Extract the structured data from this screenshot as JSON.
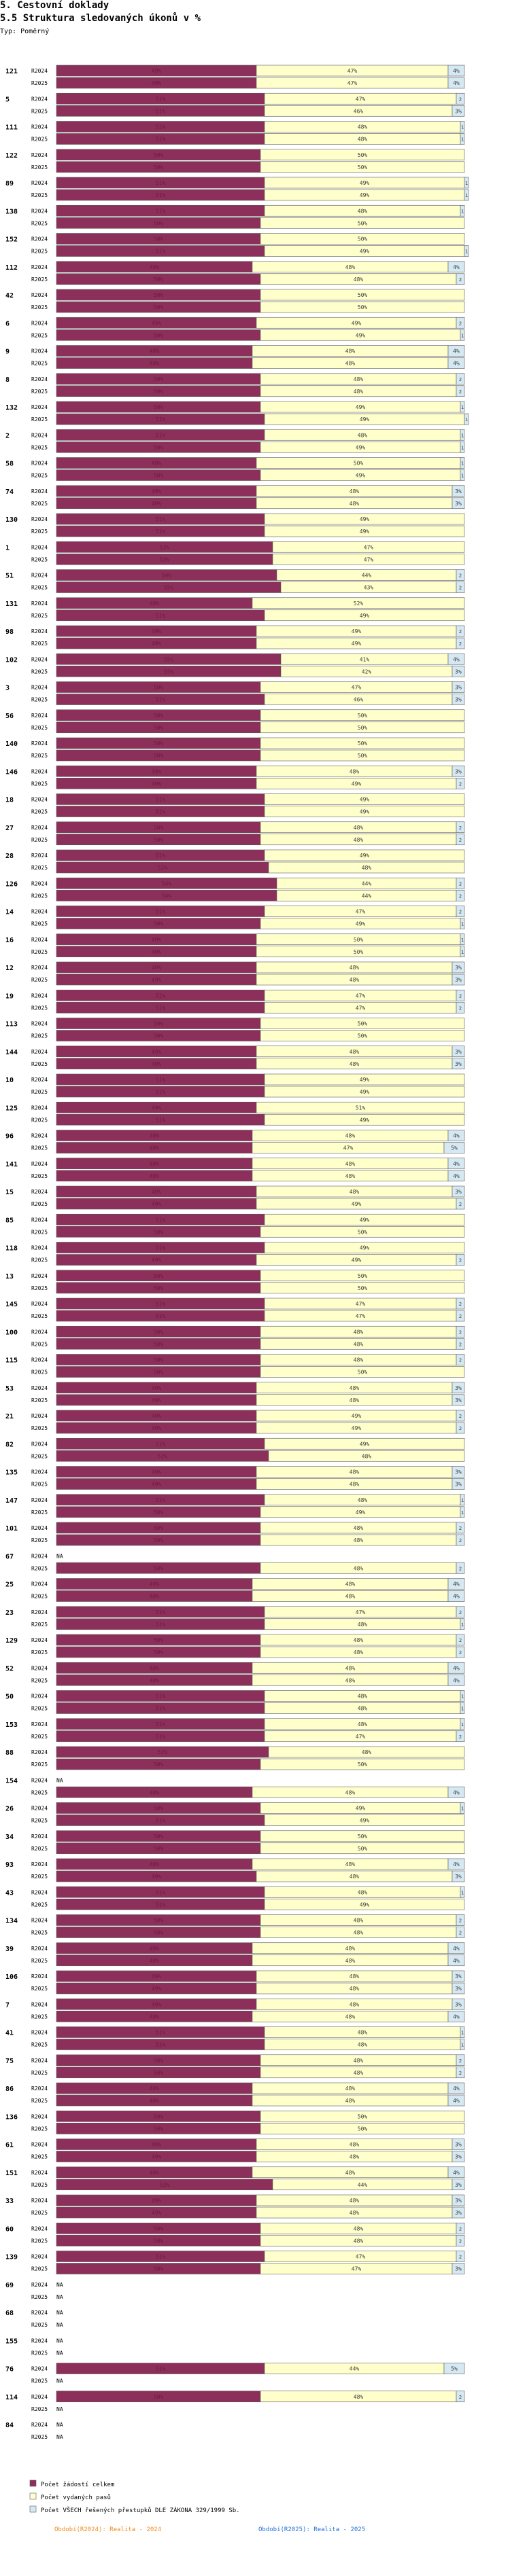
{
  "header": {
    "title": "5. Cestovní doklady",
    "subtitle": "5.5 Struktura sledovaných úkonů v %",
    "type_label": "Typ: Poměrný"
  },
  "colors": {
    "series1": "#8c2f5a",
    "series2": "#ffffcc",
    "series3": "#d6e9f2",
    "outline": "#5a5a5a",
    "footer_2024": "#f08c1e",
    "footer_2025": "#1e6fd9"
  },
  "chart_data": {
    "type": "bar",
    "stacked": true,
    "orientation": "horizontal",
    "unit": "%",
    "row_labels": [
      "R2024",
      "R2025"
    ],
    "series": [
      {
        "name": "Počet žádostí celkem"
      },
      {
        "name": "Počet vydaných pasů"
      },
      {
        "name": "Počet VŠECH řešených přestupků DLE ZÁKONA 329/1999 Sb."
      }
    ],
    "legend": [
      "Počet žádostí celkem",
      "Počet vydaných pasů",
      "Počet VŠECH řešených přestupků DLE ZÁKONA 329/1999 Sb."
    ],
    "footer": {
      "left": "Období(R2024): Realita - 2024",
      "right": "Období(R2025): Realita - 2025"
    },
    "groups": [
      {
        "id": "121",
        "r2024": [
          49,
          47,
          4
        ],
        "r2025": [
          49,
          47,
          4
        ]
      },
      {
        "id": "5",
        "r2024": [
          51,
          47,
          2
        ],
        "r2025": [
          51,
          46,
          3
        ]
      },
      {
        "id": "111",
        "r2024": [
          51,
          48,
          1
        ],
        "r2025": [
          51,
          48,
          1
        ]
      },
      {
        "id": "122",
        "r2024": [
          50,
          50,
          0
        ],
        "r2025": [
          50,
          50,
          0
        ]
      },
      {
        "id": "89",
        "r2024": [
          51,
          49,
          1
        ],
        "r2025": [
          51,
          49,
          1
        ]
      },
      {
        "id": "138",
        "r2024": [
          51,
          48,
          1
        ],
        "r2025": [
          50,
          50,
          0
        ]
      },
      {
        "id": "152",
        "r2024": [
          50,
          50,
          0
        ],
        "r2025": [
          51,
          49,
          1
        ]
      },
      {
        "id": "112",
        "r2024": [
          48,
          48,
          4
        ],
        "r2025": [
          50,
          48,
          2
        ]
      },
      {
        "id": "42",
        "r2024": [
          50,
          50,
          0
        ],
        "r2025": [
          50,
          50,
          0
        ]
      },
      {
        "id": "6",
        "r2024": [
          49,
          49,
          2
        ],
        "r2025": [
          50,
          49,
          1
        ]
      },
      {
        "id": "9",
        "r2024": [
          48,
          48,
          4
        ],
        "r2025": [
          48,
          48,
          4
        ]
      },
      {
        "id": "8",
        "r2024": [
          50,
          48,
          2
        ],
        "r2025": [
          50,
          48,
          2
        ]
      },
      {
        "id": "132",
        "r2024": [
          50,
          49,
          1
        ],
        "r2025": [
          51,
          49,
          1
        ]
      },
      {
        "id": "2",
        "r2024": [
          51,
          48,
          1
        ],
        "r2025": [
          50,
          49,
          1
        ]
      },
      {
        "id": "58",
        "r2024": [
          49,
          50,
          1
        ],
        "r2025": [
          50,
          49,
          1
        ]
      },
      {
        "id": "74",
        "r2024": [
          49,
          48,
          3
        ],
        "r2025": [
          49,
          48,
          3
        ]
      },
      {
        "id": "130",
        "r2024": [
          51,
          49,
          0
        ],
        "r2025": [
          51,
          49,
          0
        ]
      },
      {
        "id": "1",
        "r2024": [
          53,
          47,
          0
        ],
        "r2025": [
          53,
          47,
          0
        ]
      },
      {
        "id": "51",
        "r2024": [
          54,
          44,
          2
        ],
        "r2025": [
          55,
          43,
          2
        ]
      },
      {
        "id": "131",
        "r2024": [
          48,
          52,
          0
        ],
        "r2025": [
          51,
          49,
          0
        ]
      },
      {
        "id": "98",
        "r2024": [
          49,
          49,
          2
        ],
        "r2025": [
          49,
          49,
          2
        ]
      },
      {
        "id": "102",
        "r2024": [
          55,
          41,
          4
        ],
        "r2025": [
          55,
          42,
          3
        ]
      },
      {
        "id": "3",
        "r2024": [
          50,
          47,
          3
        ],
        "r2025": [
          51,
          46,
          3
        ]
      },
      {
        "id": "56",
        "r2024": [
          50,
          50,
          0
        ],
        "r2025": [
          50,
          50,
          0
        ]
      },
      {
        "id": "140",
        "r2024": [
          50,
          50,
          0
        ],
        "r2025": [
          50,
          50,
          0
        ]
      },
      {
        "id": "146",
        "r2024": [
          49,
          48,
          3
        ],
        "r2025": [
          49,
          49,
          2
        ]
      },
      {
        "id": "18",
        "r2024": [
          51,
          49,
          0
        ],
        "r2025": [
          51,
          49,
          0
        ]
      },
      {
        "id": "27",
        "r2024": [
          50,
          48,
          2
        ],
        "r2025": [
          50,
          48,
          2
        ]
      },
      {
        "id": "28",
        "r2024": [
          51,
          49,
          0
        ],
        "r2025": [
          52,
          48,
          0
        ]
      },
      {
        "id": "126",
        "r2024": [
          54,
          44,
          2
        ],
        "r2025": [
          54,
          44,
          2
        ]
      },
      {
        "id": "14",
        "r2024": [
          51,
          47,
          2
        ],
        "r2025": [
          50,
          49,
          1
        ]
      },
      {
        "id": "16",
        "r2024": [
          49,
          50,
          1
        ],
        "r2025": [
          49,
          50,
          1
        ]
      },
      {
        "id": "12",
        "r2024": [
          49,
          48,
          3
        ],
        "r2025": [
          49,
          48,
          3
        ]
      },
      {
        "id": "19",
        "r2024": [
          51,
          47,
          2
        ],
        "r2025": [
          51,
          47,
          2
        ]
      },
      {
        "id": "113",
        "r2024": [
          50,
          50,
          0
        ],
        "r2025": [
          50,
          50,
          0
        ]
      },
      {
        "id": "144",
        "r2024": [
          49,
          48,
          3
        ],
        "r2025": [
          49,
          48,
          3
        ]
      },
      {
        "id": "10",
        "r2024": [
          51,
          49,
          0
        ],
        "r2025": [
          51,
          49,
          0
        ]
      },
      {
        "id": "125",
        "r2024": [
          49,
          51,
          0
        ],
        "r2025": [
          51,
          49,
          0
        ]
      },
      {
        "id": "96",
        "r2024": [
          48,
          48,
          4
        ],
        "r2025": [
          48,
          47,
          5
        ]
      },
      {
        "id": "141",
        "r2024": [
          48,
          48,
          4
        ],
        "r2025": [
          48,
          48,
          4
        ]
      },
      {
        "id": "15",
        "r2024": [
          49,
          48,
          3
        ],
        "r2025": [
          49,
          49,
          2
        ]
      },
      {
        "id": "85",
        "r2024": [
          51,
          49,
          0
        ],
        "r2025": [
          50,
          50,
          0
        ]
      },
      {
        "id": "118",
        "r2024": [
          51,
          49,
          0
        ],
        "r2025": [
          49,
          49,
          2
        ]
      },
      {
        "id": "13",
        "r2024": [
          50,
          50,
          0
        ],
        "r2025": [
          50,
          50,
          0
        ]
      },
      {
        "id": "145",
        "r2024": [
          51,
          47,
          2
        ],
        "r2025": [
          51,
          47,
          2
        ]
      },
      {
        "id": "100",
        "r2024": [
          50,
          48,
          2
        ],
        "r2025": [
          50,
          48,
          2
        ]
      },
      {
        "id": "115",
        "r2024": [
          50,
          48,
          2
        ],
        "r2025": [
          50,
          50,
          0
        ]
      },
      {
        "id": "53",
        "r2024": [
          49,
          48,
          3
        ],
        "r2025": [
          49,
          48,
          3
        ]
      },
      {
        "id": "21",
        "r2024": [
          49,
          49,
          2
        ],
        "r2025": [
          49,
          49,
          2
        ]
      },
      {
        "id": "82",
        "r2024": [
          51,
          49,
          0
        ],
        "r2025": [
          52,
          48,
          0
        ]
      },
      {
        "id": "135",
        "r2024": [
          49,
          48,
          3
        ],
        "r2025": [
          49,
          48,
          3
        ]
      },
      {
        "id": "147",
        "r2024": [
          51,
          48,
          1
        ],
        "r2025": [
          50,
          49,
          1
        ]
      },
      {
        "id": "101",
        "r2024": [
          50,
          48,
          2
        ],
        "r2025": [
          50,
          48,
          2
        ]
      },
      {
        "id": "67",
        "r2024": null,
        "r2025": [
          50,
          48,
          2
        ]
      },
      {
        "id": "25",
        "r2024": [
          48,
          48,
          4
        ],
        "r2025": [
          48,
          48,
          4
        ]
      },
      {
        "id": "23",
        "r2024": [
          51,
          47,
          2
        ],
        "r2025": [
          51,
          48,
          1
        ]
      },
      {
        "id": "129",
        "r2024": [
          50,
          48,
          2
        ],
        "r2025": [
          50,
          48,
          2
        ]
      },
      {
        "id": "52",
        "r2024": [
          48,
          48,
          4
        ],
        "r2025": [
          48,
          48,
          4
        ]
      },
      {
        "id": "50",
        "r2024": [
          51,
          48,
          1
        ],
        "r2025": [
          51,
          48,
          1
        ]
      },
      {
        "id": "153",
        "r2024": [
          51,
          48,
          1
        ],
        "r2025": [
          51,
          47,
          2
        ]
      },
      {
        "id": "88",
        "r2024": [
          52,
          48,
          0
        ],
        "r2025": [
          50,
          50,
          0
        ]
      },
      {
        "id": "154",
        "r2024": null,
        "r2025": [
          48,
          48,
          4
        ]
      },
      {
        "id": "26",
        "r2024": [
          50,
          49,
          1
        ],
        "r2025": [
          51,
          49,
          0
        ]
      },
      {
        "id": "34",
        "r2024": [
          50,
          50,
          0
        ],
        "r2025": [
          50,
          50,
          0
        ]
      },
      {
        "id": "93",
        "r2024": [
          48,
          48,
          4
        ],
        "r2025": [
          49,
          48,
          3
        ]
      },
      {
        "id": "43",
        "r2024": [
          51,
          48,
          1
        ],
        "r2025": [
          51,
          49,
          0
        ]
      },
      {
        "id": "134",
        "r2024": [
          50,
          48,
          2
        ],
        "r2025": [
          50,
          48,
          2
        ]
      },
      {
        "id": "39",
        "r2024": [
          48,
          48,
          4
        ],
        "r2025": [
          48,
          48,
          4
        ]
      },
      {
        "id": "106",
        "r2024": [
          49,
          48,
          3
        ],
        "r2025": [
          49,
          48,
          3
        ]
      },
      {
        "id": "7",
        "r2024": [
          49,
          48,
          3
        ],
        "r2025": [
          48,
          48,
          4
        ]
      },
      {
        "id": "41",
        "r2024": [
          51,
          48,
          1
        ],
        "r2025": [
          51,
          48,
          1
        ]
      },
      {
        "id": "75",
        "r2024": [
          50,
          48,
          2
        ],
        "r2025": [
          50,
          48,
          2
        ]
      },
      {
        "id": "86",
        "r2024": [
          48,
          48,
          4
        ],
        "r2025": [
          48,
          48,
          4
        ]
      },
      {
        "id": "136",
        "r2024": [
          50,
          50,
          0
        ],
        "r2025": [
          50,
          50,
          0
        ]
      },
      {
        "id": "61",
        "r2024": [
          49,
          48,
          3
        ],
        "r2025": [
          49,
          48,
          3
        ]
      },
      {
        "id": "151",
        "r2024": [
          48,
          48,
          4
        ],
        "r2025": [
          53,
          44,
          3
        ]
      },
      {
        "id": "33",
        "r2024": [
          49,
          48,
          3
        ],
        "r2025": [
          49,
          48,
          3
        ]
      },
      {
        "id": "60",
        "r2024": [
          50,
          48,
          2
        ],
        "r2025": [
          50,
          48,
          2
        ]
      },
      {
        "id": "139",
        "r2024": [
          51,
          47,
          2
        ],
        "r2025": [
          50,
          47,
          3
        ]
      },
      {
        "id": "69",
        "r2024": null,
        "r2025": null
      },
      {
        "id": "68",
        "r2024": null,
        "r2025": null
      },
      {
        "id": "155",
        "r2024": null,
        "r2025": null
      },
      {
        "id": "76",
        "r2024": [
          51,
          44,
          5
        ],
        "r2025": null
      },
      {
        "id": "114",
        "r2024": [
          50,
          48,
          2
        ],
        "r2025": null
      },
      {
        "id": "84",
        "r2024": null,
        "r2025": null
      }
    ]
  }
}
